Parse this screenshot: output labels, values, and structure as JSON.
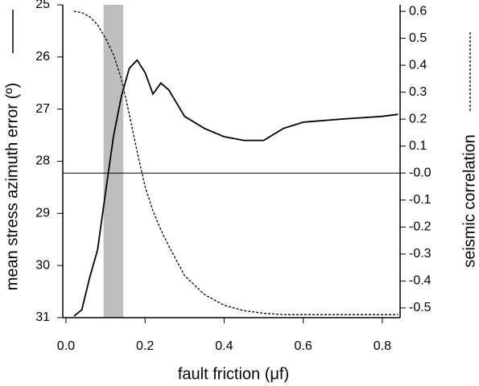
{
  "chart_data": {
    "type": "line",
    "xlabel": "fault friction (μf)",
    "ylabel": "mean stress azimuth error (º)",
    "y2label": "seismic correlation",
    "x": [
      0.02,
      0.04,
      0.06,
      0.08,
      0.1,
      0.12,
      0.14,
      0.16,
      0.18,
      0.2,
      0.22,
      0.24,
      0.26,
      0.3,
      0.35,
      0.4,
      0.45,
      0.5,
      0.55,
      0.6,
      0.7,
      0.8,
      0.84
    ],
    "series": [
      {
        "color": "#000000",
        "dash": false,
        "axis": "y",
        "values": [
          30.97,
          30.85,
          30.23,
          29.7,
          28.6,
          27.53,
          26.76,
          26.22,
          26.06,
          26.3,
          26.71,
          26.5,
          26.63,
          27.14,
          27.37,
          27.53,
          27.6,
          27.6,
          27.37,
          27.25,
          27.19,
          27.14,
          27.1
        ]
      },
      {
        "color": "#000000",
        "dash": true,
        "axis": "y2",
        "values": [
          0.6,
          0.595,
          0.58,
          0.55,
          0.5,
          0.44,
          0.35,
          0.22,
          0.08,
          -0.05,
          -0.14,
          -0.21,
          -0.27,
          -0.38,
          -0.45,
          -0.49,
          -0.51,
          -0.52,
          -0.525,
          -0.525,
          -0.525,
          -0.525,
          -0.525
        ]
      }
    ],
    "xlim": [
      -0.008,
      0.845
    ],
    "xticks": [
      {
        "value": 0,
        "label": "0.0"
      },
      0.2,
      0.4,
      0.6,
      0.8
    ],
    "ylim": [
      25,
      31
    ],
    "y_inverted": true,
    "yticks": [
      25,
      26,
      27,
      28,
      29,
      30,
      31
    ],
    "y2lim": [
      -0.536,
      0.624
    ],
    "y2ticks": [
      0.6,
      0.5,
      0.4,
      0.3,
      0.2,
      0.1,
      {
        "value": 0,
        "label": "-0.0"
      },
      -0.1,
      -0.2,
      -0.3,
      -0.4,
      -0.5
    ],
    "hline_y2": 0,
    "shade": [
      0.095,
      0.145
    ],
    "shade_color": "#bebebe"
  }
}
